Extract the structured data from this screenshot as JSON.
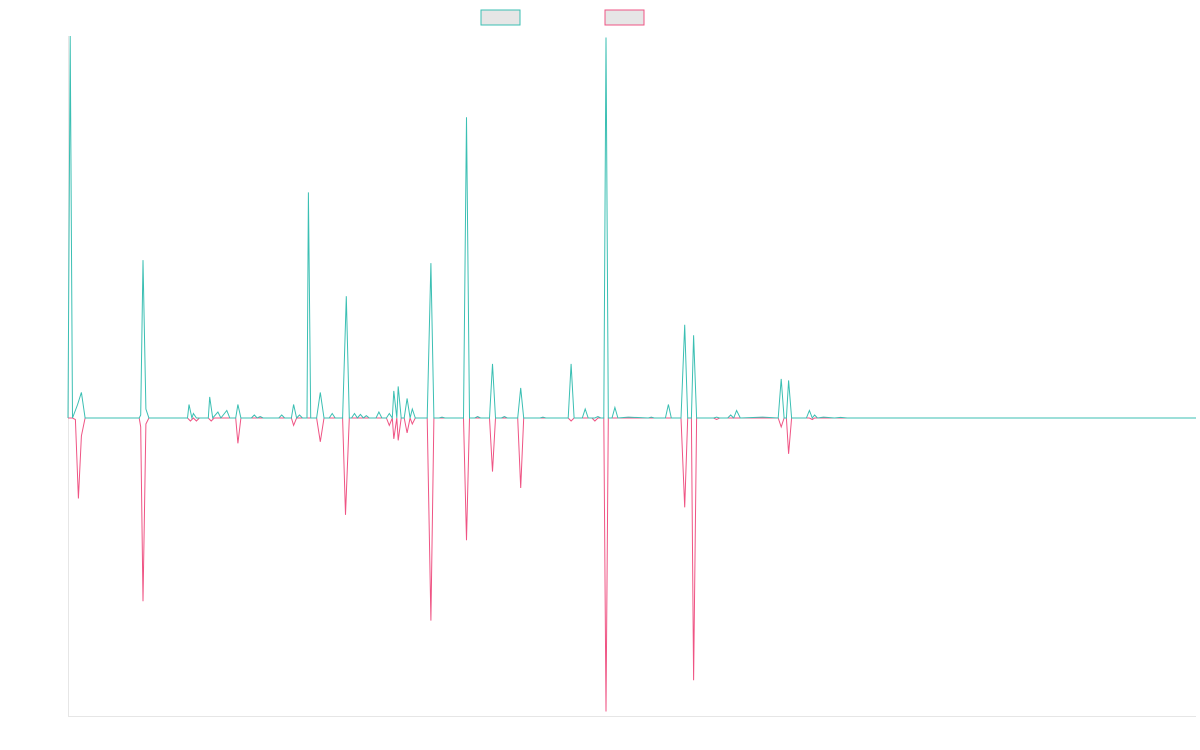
{
  "chart_data": {
    "type": "line",
    "title": "",
    "xlabel": "",
    "ylabel": "",
    "grid": false,
    "legend": {
      "position": "top-center"
    },
    "xlim": [
      0,
      152
    ],
    "ylim": [
      -100,
      125
    ],
    "series": [
      {
        "color": "#3bbfb3",
        "points": [
          [
            0,
            0
          ],
          [
            0.3,
            127
          ],
          [
            0.6,
            0
          ],
          [
            1.3,
            4.5
          ],
          [
            1.8,
            8.5
          ],
          [
            2.3,
            0
          ],
          [
            9.6,
            0
          ],
          [
            9.8,
            1
          ],
          [
            10.1,
            52.5
          ],
          [
            10.5,
            3
          ],
          [
            10.9,
            0
          ],
          [
            16.1,
            0
          ],
          [
            16.3,
            4.5
          ],
          [
            16.7,
            0
          ],
          [
            16.9,
            1.5
          ],
          [
            17.3,
            0
          ],
          [
            18.9,
            0
          ],
          [
            19.1,
            7
          ],
          [
            19.5,
            0
          ],
          [
            20.2,
            2
          ],
          [
            20.6,
            0
          ],
          [
            21.4,
            2.5
          ],
          [
            21.8,
            0
          ],
          [
            22.6,
            0
          ],
          [
            22.9,
            4.5
          ],
          [
            23.3,
            0
          ],
          [
            24.7,
            0
          ],
          [
            25.1,
            1
          ],
          [
            25.5,
            0
          ],
          [
            25.9,
            0.5
          ],
          [
            26.3,
            0
          ],
          [
            28.4,
            0
          ],
          [
            28.8,
            1
          ],
          [
            29.2,
            0
          ],
          [
            30.1,
            0
          ],
          [
            30.4,
            4.5
          ],
          [
            30.8,
            0
          ],
          [
            31.2,
            1
          ],
          [
            31.6,
            0
          ],
          [
            32.2,
            0
          ],
          [
            32.4,
            75
          ],
          [
            32.7,
            0
          ],
          [
            33.5,
            0
          ],
          [
            34.0,
            8.5
          ],
          [
            34.5,
            0
          ],
          [
            35.2,
            0
          ],
          [
            35.6,
            1.5
          ],
          [
            36.0,
            0
          ],
          [
            37.0,
            0
          ],
          [
            37.5,
            40.5
          ],
          [
            37.9,
            0
          ],
          [
            38.2,
            0
          ],
          [
            38.6,
            1.5
          ],
          [
            39.0,
            0
          ],
          [
            39.4,
            1.2
          ],
          [
            39.8,
            0
          ],
          [
            40.2,
            0.8
          ],
          [
            40.6,
            0
          ],
          [
            41.5,
            0
          ],
          [
            41.9,
            2
          ],
          [
            42.3,
            0
          ],
          [
            42.9,
            0
          ],
          [
            43.3,
            1.5
          ],
          [
            43.7,
            0
          ],
          [
            43.9,
            9
          ],
          [
            44.3,
            0
          ],
          [
            44.5,
            10.5
          ],
          [
            44.9,
            0
          ],
          [
            45.3,
            0
          ],
          [
            45.7,
            6.5
          ],
          [
            46.1,
            0
          ],
          [
            46.4,
            3
          ],
          [
            46.8,
            0
          ],
          [
            48.4,
            0
          ],
          [
            48.9,
            51.5
          ],
          [
            49.3,
            0
          ],
          [
            50.0,
            0
          ],
          [
            50.4,
            0.3
          ],
          [
            50.8,
            0
          ],
          [
            53.3,
            0
          ],
          [
            53.7,
            100
          ],
          [
            54.1,
            0
          ],
          [
            54.8,
            0
          ],
          [
            55.2,
            0.5
          ],
          [
            55.6,
            0
          ],
          [
            56.8,
            0
          ],
          [
            57.2,
            18
          ],
          [
            57.6,
            0
          ],
          [
            58.4,
            0
          ],
          [
            58.8,
            0.5
          ],
          [
            59.2,
            0
          ],
          [
            60.6,
            0
          ],
          [
            61.0,
            10
          ],
          [
            61.4,
            0
          ],
          [
            63.6,
            0
          ],
          [
            64.0,
            0.3
          ],
          [
            64.4,
            0
          ],
          [
            67.4,
            0
          ],
          [
            67.8,
            18
          ],
          [
            68.2,
            0
          ],
          [
            69.3,
            0
          ],
          [
            69.7,
            3
          ],
          [
            70.1,
            0
          ],
          [
            71.0,
            0
          ],
          [
            71.4,
            0.5
          ],
          [
            71.8,
            0
          ],
          [
            72.2,
            0
          ],
          [
            72.5,
            126.5
          ],
          [
            72.8,
            0
          ],
          [
            73.3,
            0
          ],
          [
            73.7,
            3.5
          ],
          [
            74.1,
            0
          ],
          [
            75.5,
            0.3
          ],
          [
            78.2,
            0
          ],
          [
            78.6,
            0.3
          ],
          [
            79.0,
            0
          ],
          [
            80.5,
            0
          ],
          [
            80.9,
            4.5
          ],
          [
            81.3,
            0
          ],
          [
            82.6,
            0
          ],
          [
            83.1,
            31
          ],
          [
            83.5,
            0
          ],
          [
            84.0,
            0
          ],
          [
            84.3,
            27.5
          ],
          [
            84.7,
            0
          ],
          [
            87.0,
            0
          ],
          [
            87.4,
            0.3
          ],
          [
            87.8,
            0
          ],
          [
            88.9,
            0
          ],
          [
            89.3,
            1
          ],
          [
            89.7,
            0
          ],
          [
            90.1,
            2.5
          ],
          [
            90.6,
            0
          ],
          [
            93.6,
            0.3
          ],
          [
            95.7,
            0
          ],
          [
            96.1,
            13
          ],
          [
            96.5,
            0
          ],
          [
            96.8,
            0
          ],
          [
            97.1,
            12.5
          ],
          [
            97.5,
            0
          ],
          [
            99.5,
            0
          ],
          [
            99.9,
            2.5
          ],
          [
            100.3,
            0
          ],
          [
            100.6,
            1
          ],
          [
            101.0,
            0
          ],
          [
            101.8,
            0.3
          ],
          [
            103.3,
            0
          ],
          [
            104.1,
            0.2
          ],
          [
            105.0,
            0
          ],
          [
            152,
            0
          ]
        ]
      },
      {
        "color": "#ef5484",
        "points": [
          [
            0,
            0
          ],
          [
            0.3,
            0
          ],
          [
            0.6,
            0
          ],
          [
            1.0,
            -0.5
          ],
          [
            1.4,
            -27
          ],
          [
            1.8,
            -6
          ],
          [
            2.3,
            0
          ],
          [
            9.6,
            0
          ],
          [
            9.8,
            -3
          ],
          [
            10.1,
            -61.5
          ],
          [
            10.5,
            -2
          ],
          [
            10.9,
            0
          ],
          [
            16.1,
            0
          ],
          [
            16.5,
            -1
          ],
          [
            16.9,
            0
          ],
          [
            17.3,
            -1
          ],
          [
            17.7,
            0
          ],
          [
            18.9,
            0
          ],
          [
            19.3,
            -1
          ],
          [
            19.7,
            0
          ],
          [
            22.6,
            0
          ],
          [
            22.9,
            -8.5
          ],
          [
            23.3,
            0
          ],
          [
            30.1,
            0
          ],
          [
            30.4,
            -2.5
          ],
          [
            30.8,
            0
          ],
          [
            32.2,
            0
          ],
          [
            32.4,
            0
          ],
          [
            32.7,
            0
          ],
          [
            33.5,
            0
          ],
          [
            34.0,
            -8
          ],
          [
            34.5,
            0
          ],
          [
            37.0,
            0
          ],
          [
            37.4,
            -32.5
          ],
          [
            37.9,
            0
          ],
          [
            42.9,
            0
          ],
          [
            43.3,
            -2.5
          ],
          [
            43.7,
            0
          ],
          [
            43.9,
            -7
          ],
          [
            44.3,
            0
          ],
          [
            44.5,
            -7.5
          ],
          [
            44.9,
            0
          ],
          [
            45.3,
            0
          ],
          [
            45.7,
            -5
          ],
          [
            46.1,
            0
          ],
          [
            46.4,
            -2
          ],
          [
            46.8,
            0
          ],
          [
            48.4,
            0
          ],
          [
            48.9,
            -68
          ],
          [
            49.3,
            0
          ],
          [
            53.3,
            0
          ],
          [
            53.7,
            -41
          ],
          [
            54.1,
            0
          ],
          [
            56.8,
            0
          ],
          [
            57.2,
            -18
          ],
          [
            57.6,
            0
          ],
          [
            60.6,
            0
          ],
          [
            61.0,
            -23.5
          ],
          [
            61.4,
            0
          ],
          [
            67.4,
            0
          ],
          [
            67.8,
            -1
          ],
          [
            68.2,
            0
          ],
          [
            70.6,
            0
          ],
          [
            71.0,
            -1
          ],
          [
            71.4,
            0
          ],
          [
            72.2,
            0
          ],
          [
            72.5,
            -98.5
          ],
          [
            72.8,
            0
          ],
          [
            82.6,
            0
          ],
          [
            83.1,
            -30
          ],
          [
            83.5,
            0
          ],
          [
            84.0,
            0
          ],
          [
            84.3,
            -88
          ],
          [
            84.7,
            0
          ],
          [
            87.0,
            0
          ],
          [
            87.4,
            -0.5
          ],
          [
            87.8,
            0
          ],
          [
            95.7,
            0
          ],
          [
            96.1,
            -3
          ],
          [
            96.5,
            0
          ],
          [
            96.8,
            0
          ],
          [
            97.1,
            -12
          ],
          [
            97.5,
            0
          ],
          [
            99.9,
            0
          ],
          [
            100.3,
            -0.5
          ],
          [
            100.6,
            0
          ],
          [
            152,
            0
          ]
        ]
      }
    ]
  }
}
